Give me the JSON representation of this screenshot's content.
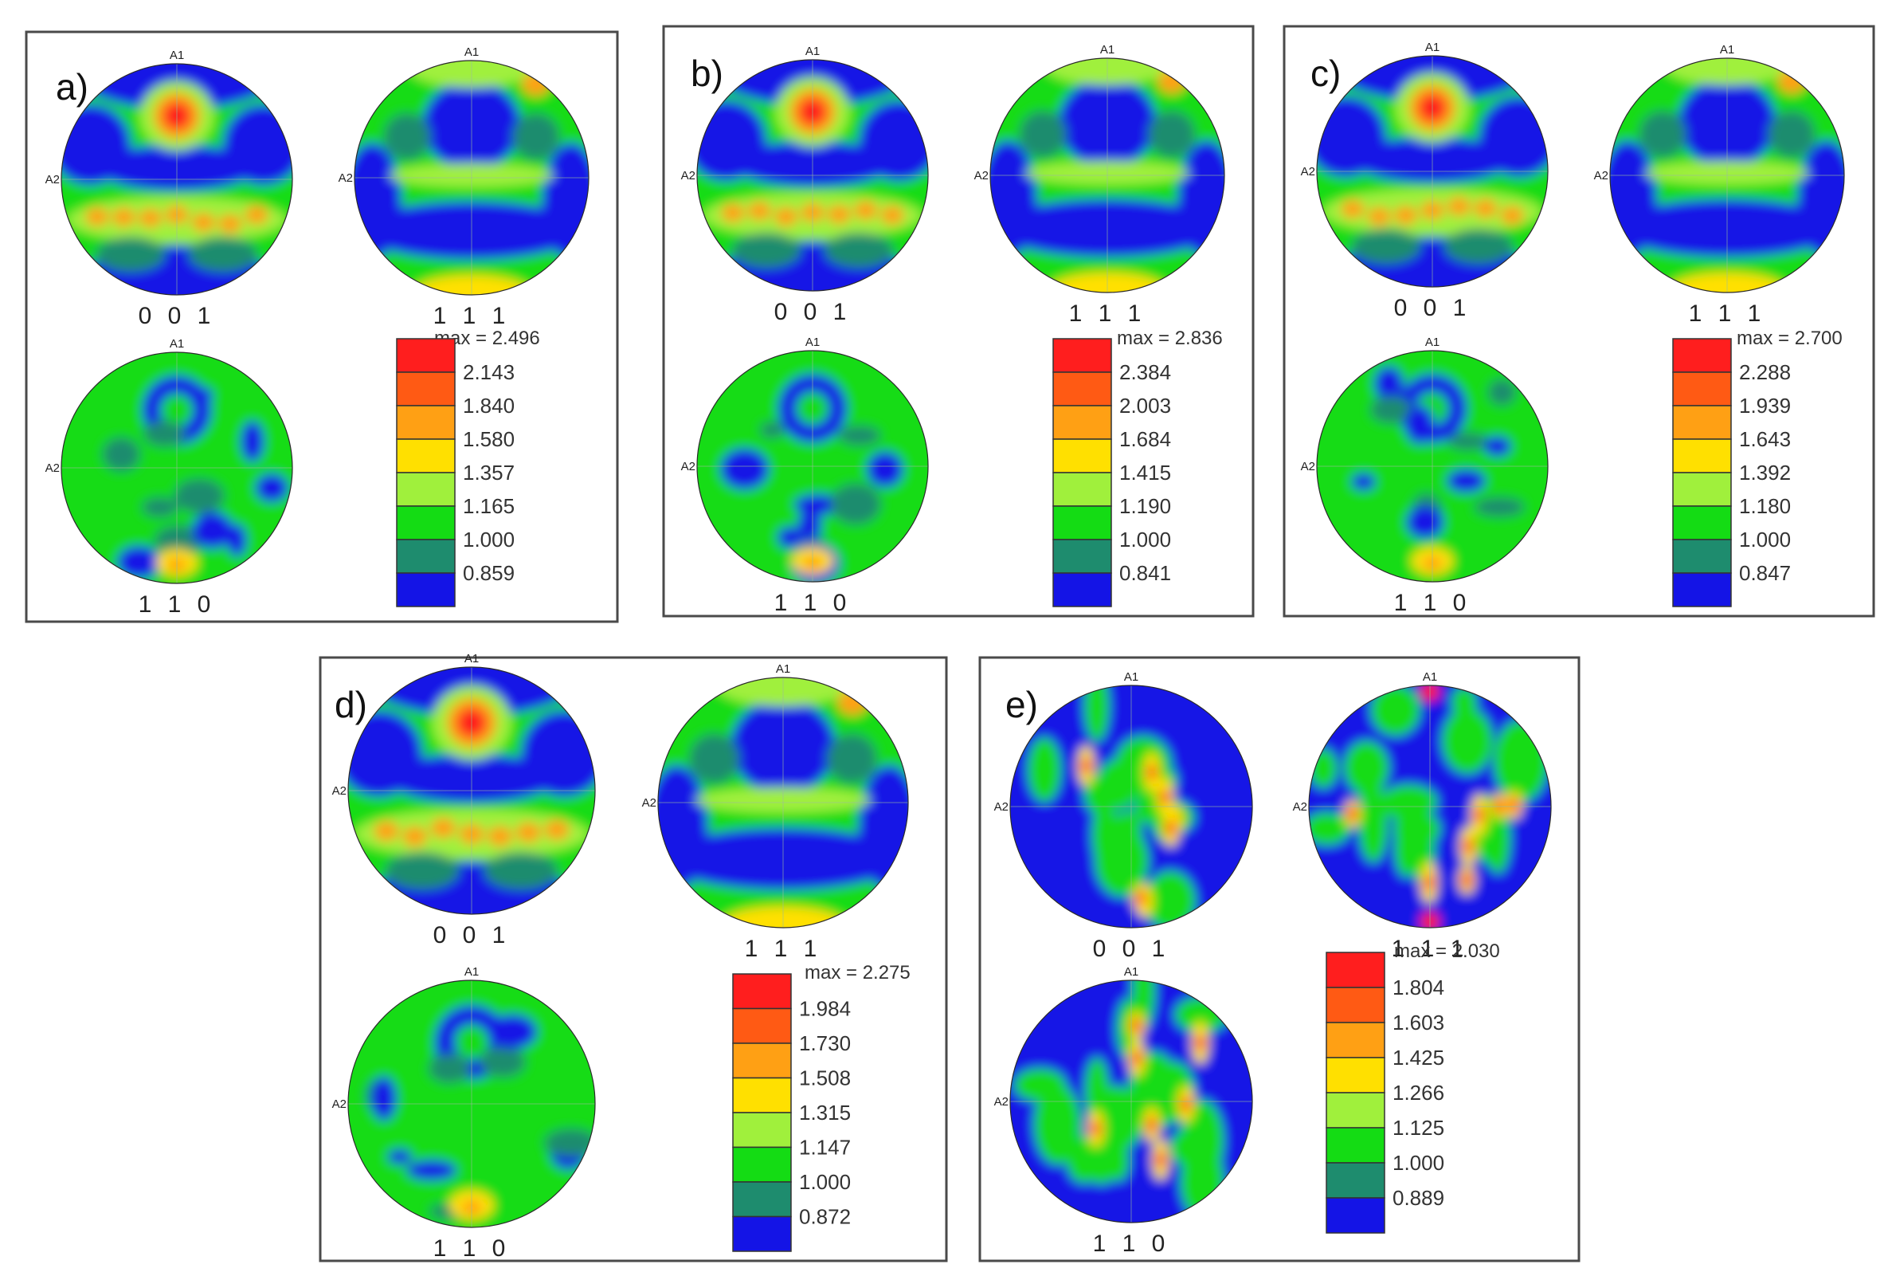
{
  "legend_colors": [
    "#1414e6",
    "#1e8c6e",
    "#14dc14",
    "#a0f03c",
    "#ffe000",
    "#ffa014",
    "#ff5a14",
    "#ff1e1e"
  ],
  "axis_labels": {
    "top": "A1",
    "left": "A2"
  },
  "panels": [
    {
      "letter": "a)",
      "figures": [
        "0 0 1",
        "1 1 1",
        "1 1 0"
      ],
      "legend": {
        "max": "max = 2.496",
        "levels": [
          "2.143",
          "1.840",
          "1.580",
          "1.357",
          "1.165",
          "1.000",
          "0.859"
        ]
      }
    },
    {
      "letter": "b)",
      "figures": [
        "0 0 1",
        "1 1 1",
        "1 1 0"
      ],
      "legend": {
        "max": "max = 2.836",
        "levels": [
          "2.384",
          "2.003",
          "1.684",
          "1.415",
          "1.190",
          "1.000",
          "0.841"
        ]
      }
    },
    {
      "letter": "c)",
      "figures": [
        "0 0 1",
        "1 1 1",
        "1 1 0"
      ],
      "legend": {
        "max": "max = 2.700",
        "levels": [
          "2.288",
          "1.939",
          "1.643",
          "1.392",
          "1.180",
          "1.000",
          "0.847"
        ]
      }
    },
    {
      "letter": "d)",
      "figures": [
        "0 0 1",
        "1 1 1",
        "1 1 0"
      ],
      "legend": {
        "max": "max = 2.275",
        "levels": [
          "1.984",
          "1.730",
          "1.508",
          "1.315",
          "1.147",
          "1.000",
          "0.872"
        ]
      }
    },
    {
      "letter": "e)",
      "figures": [
        "0 0 1",
        "1 1 1",
        "1 1 0"
      ],
      "legend": {
        "max": "max = 2.030",
        "levels": [
          "1.804",
          "1.603",
          "1.425",
          "1.266",
          "1.125",
          "1.000",
          "0.889"
        ]
      }
    }
  ]
}
